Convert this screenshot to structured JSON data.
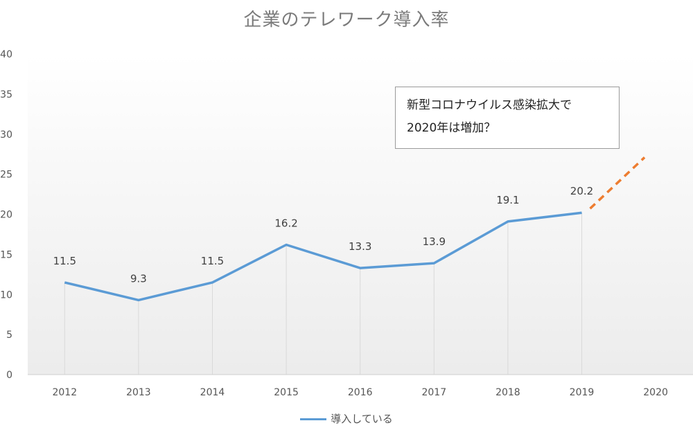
{
  "chart_data": {
    "type": "line",
    "title": "企業のテレワーク導入率",
    "categories": [
      "2012",
      "2013",
      "2014",
      "2015",
      "2016",
      "2017",
      "2018",
      "2019",
      "2020"
    ],
    "series": [
      {
        "name": "導入している",
        "values": [
          11.5,
          9.3,
          11.5,
          16.2,
          13.3,
          13.9,
          19.1,
          20.2,
          null
        ],
        "data_labels": [
          "11.5",
          "9.3",
          "11.5",
          "16.2",
          "13.3",
          "13.9",
          "19.1",
          "20.2"
        ]
      }
    ],
    "projection": {
      "from": {
        "x": "2019",
        "y": 20.2
      },
      "to": {
        "x": "2020",
        "y": 27.1
      }
    },
    "ylim": [
      0,
      40
    ],
    "yticks": [
      "0",
      "5",
      "10",
      "15",
      "20",
      "25",
      "30",
      "35",
      "40"
    ],
    "grid": false,
    "drop_lines": true,
    "legend_position": "bottom",
    "annotation": {
      "line1": "新型コロナウイルス感染拡大で",
      "line2": "2020年は増加？"
    },
    "colors": {
      "series": "#5b9bd5",
      "projection": "#ed7d31",
      "axis_text": "#555555",
      "title": "#7a7a7a"
    }
  }
}
